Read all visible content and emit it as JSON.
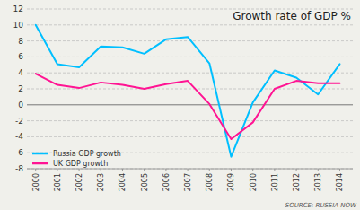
{
  "chart_data": {
    "type": "line",
    "title": "Growth rate of GDP %",
    "x": [
      2000,
      2001,
      2002,
      2003,
      2004,
      2005,
      2006,
      2007,
      2008,
      2009,
      2010,
      2011,
      2012,
      2013,
      2014
    ],
    "series": [
      {
        "name": "Russia GDP growth",
        "color": "#00BFFF",
        "values": [
          10.0,
          5.1,
          4.7,
          7.3,
          7.2,
          6.4,
          8.2,
          8.5,
          5.2,
          -6.5,
          0.3,
          4.3,
          3.4,
          1.3,
          5.1
        ]
      },
      {
        "name": "UK GDP growth",
        "color": "#FF1493",
        "values": [
          3.9,
          2.5,
          2.1,
          2.8,
          2.5,
          2.0,
          2.6,
          3.0,
          0.1,
          -4.3,
          -2.2,
          2.0,
          3.0,
          2.7,
          2.7
        ]
      }
    ],
    "xlim": [
      1999.6,
      2014.6
    ],
    "xticks": [
      2000,
      2001,
      2002,
      2003,
      2004,
      2005,
      2006,
      2007,
      2008,
      2009,
      2010,
      2011,
      2012,
      2013,
      2014
    ],
    "ylim": [
      -8,
      12
    ],
    "yticks": [
      -8,
      -6,
      -4,
      -2,
      0,
      2,
      4,
      6,
      8,
      10,
      12
    ],
    "grid": true,
    "legend": "lower left",
    "annotations": [
      "SOURCE: RUSSIA NOW"
    ]
  }
}
